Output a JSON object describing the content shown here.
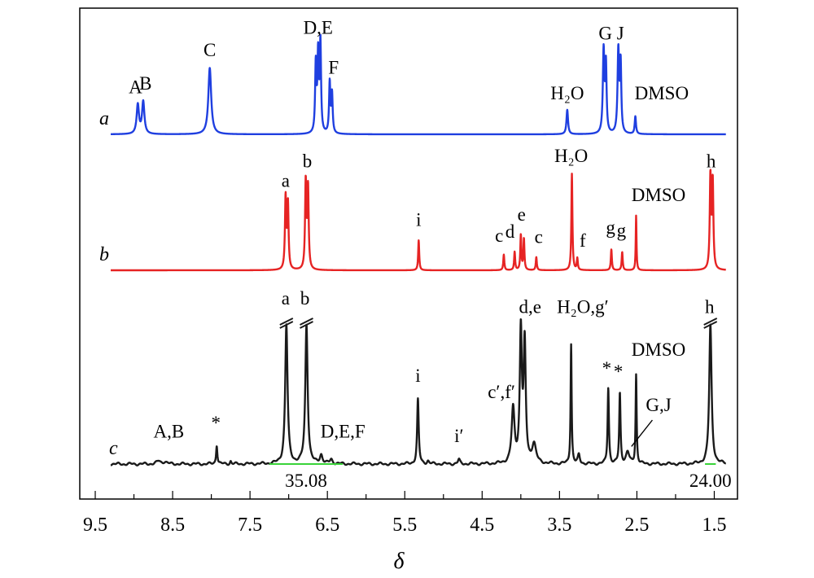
{
  "chart_data": {
    "type": "line",
    "xlabel": "δ",
    "xlim": [
      9.7,
      1.2
    ],
    "x_reversed": true,
    "x_ticks": [
      {
        "v": 9.5,
        "label": "9.5"
      },
      {
        "v": 8.5,
        "label": "8.5"
      },
      {
        "v": 7.5,
        "label": "7.5"
      },
      {
        "v": 6.5,
        "label": "6.5"
      },
      {
        "v": 5.5,
        "label": "5.5"
      },
      {
        "v": 4.5,
        "label": "4.5"
      },
      {
        "v": 3.5,
        "label": "3.5"
      },
      {
        "v": 2.5,
        "label": "2.5"
      },
      {
        "v": 1.5,
        "label": "1.5"
      }
    ],
    "grid": false,
    "legend": "none",
    "series": [
      {
        "id": "a",
        "label": "a",
        "color": "#1f3fe0",
        "peaks": [
          {
            "x": 8.95,
            "h": 0.3,
            "w": 0.018
          },
          {
            "x": 8.88,
            "h": 0.33,
            "w": 0.018
          },
          {
            "x": 8.02,
            "h": 0.68,
            "w": 0.022
          },
          {
            "x": 6.65,
            "h": 0.7,
            "w": 0.01
          },
          {
            "x": 6.62,
            "h": 0.78,
            "w": 0.01
          },
          {
            "x": 6.59,
            "h": 0.92,
            "w": 0.01
          },
          {
            "x": 6.47,
            "h": 0.52,
            "w": 0.01
          },
          {
            "x": 6.44,
            "h": 0.4,
            "w": 0.01
          },
          {
            "x": 3.4,
            "h": 0.25,
            "w": 0.012
          },
          {
            "x": 2.93,
            "h": 0.85,
            "w": 0.012
          },
          {
            "x": 2.9,
            "h": 0.68,
            "w": 0.01
          },
          {
            "x": 2.74,
            "h": 0.85,
            "w": 0.012
          },
          {
            "x": 2.71,
            "h": 0.7,
            "w": 0.01
          },
          {
            "x": 2.52,
            "h": 0.18,
            "w": 0.01
          }
        ],
        "annotations": [
          {
            "text": "A",
            "x": 8.98,
            "y": 0.42
          },
          {
            "text": "B",
            "x": 8.85,
            "y": 0.46
          },
          {
            "text": "C",
            "x": 8.02,
            "y": 0.8
          },
          {
            "text": "D,E",
            "x": 6.62,
            "y": 1.03
          },
          {
            "text": "F",
            "x": 6.42,
            "y": 0.62
          },
          {
            "text": "H₂O",
            "x": 3.4,
            "y": 0.36
          },
          {
            "text": "G J",
            "x": 2.83,
            "y": 0.97
          },
          {
            "text": "DMSO",
            "x": 2.18,
            "y": 0.36
          }
        ]
      },
      {
        "id": "b",
        "label": "b",
        "color": "#e62323",
        "peaks": [
          {
            "x": 7.04,
            "h": 0.55,
            "w": 0.01
          },
          {
            "x": 7.01,
            "h": 0.5,
            "w": 0.01
          },
          {
            "x": 6.78,
            "h": 0.67,
            "w": 0.01
          },
          {
            "x": 6.75,
            "h": 0.62,
            "w": 0.01
          },
          {
            "x": 5.32,
            "h": 0.23,
            "w": 0.008
          },
          {
            "x": 4.22,
            "h": 0.12,
            "w": 0.008
          },
          {
            "x": 4.08,
            "h": 0.14,
            "w": 0.008
          },
          {
            "x": 4.0,
            "h": 0.27,
            "w": 0.008
          },
          {
            "x": 3.96,
            "h": 0.24,
            "w": 0.008
          },
          {
            "x": 3.8,
            "h": 0.1,
            "w": 0.008
          },
          {
            "x": 3.34,
            "h": 0.74,
            "w": 0.008
          },
          {
            "x": 3.27,
            "h": 0.09,
            "w": 0.008
          },
          {
            "x": 2.83,
            "h": 0.16,
            "w": 0.008
          },
          {
            "x": 2.69,
            "h": 0.14,
            "w": 0.008
          },
          {
            "x": 2.51,
            "h": 0.42,
            "w": 0.006
          },
          {
            "x": 1.55,
            "h": 0.71,
            "w": 0.01
          },
          {
            "x": 1.52,
            "h": 0.67,
            "w": 0.01
          }
        ],
        "annotations": [
          {
            "text": "a",
            "x": 7.04,
            "y": 0.64
          },
          {
            "text": "b",
            "x": 6.76,
            "y": 0.79
          },
          {
            "text": "i",
            "x": 5.32,
            "y": 0.34
          },
          {
            "text": "c",
            "x": 4.28,
            "y": 0.22
          },
          {
            "text": "d",
            "x": 4.14,
            "y": 0.25
          },
          {
            "text": "e",
            "x": 3.99,
            "y": 0.38
          },
          {
            "text": "c",
            "x": 3.77,
            "y": 0.21
          },
          {
            "text": "H₂O",
            "x": 3.35,
            "y": 0.83
          },
          {
            "text": "f",
            "x": 3.2,
            "y": 0.18
          },
          {
            "text": "g",
            "x": 2.84,
            "y": 0.28
          },
          {
            "text": "g",
            "x": 2.7,
            "y": 0.26
          },
          {
            "text": "DMSO",
            "x": 2.22,
            "y": 0.53
          },
          {
            "text": "h",
            "x": 1.54,
            "y": 0.79
          }
        ]
      },
      {
        "id": "c",
        "label": "c",
        "color": "#1a1a1a",
        "peaks": [
          {
            "x": 8.68,
            "h": 0.02,
            "w": 0.03
          },
          {
            "x": 8.6,
            "h": 0.015,
            "w": 0.03
          },
          {
            "x": 7.93,
            "h": 0.13,
            "w": 0.01
          },
          {
            "x": 7.75,
            "h": 0.02,
            "w": 0.01
          },
          {
            "x": 7.03,
            "h": 0.95,
            "w": 0.018
          },
          {
            "x": 6.77,
            "h": 0.95,
            "w": 0.018
          },
          {
            "x": 6.58,
            "h": 0.06,
            "w": 0.02
          },
          {
            "x": 6.45,
            "h": 0.03,
            "w": 0.02
          },
          {
            "x": 5.33,
            "h": 0.44,
            "w": 0.012
          },
          {
            "x": 5.2,
            "h": 0.02,
            "w": 0.015
          },
          {
            "x": 4.8,
            "h": 0.03,
            "w": 0.015
          },
          {
            "x": 4.1,
            "h": 0.37,
            "w": 0.022
          },
          {
            "x": 4.0,
            "h": 0.9,
            "w": 0.016
          },
          {
            "x": 3.95,
            "h": 0.8,
            "w": 0.016
          },
          {
            "x": 3.83,
            "h": 0.13,
            "w": 0.03
          },
          {
            "x": 3.35,
            "h": 0.82,
            "w": 0.008
          },
          {
            "x": 3.25,
            "h": 0.06,
            "w": 0.015
          },
          {
            "x": 2.87,
            "h": 0.52,
            "w": 0.01
          },
          {
            "x": 2.72,
            "h": 0.48,
            "w": 0.01
          },
          {
            "x": 2.62,
            "h": 0.08,
            "w": 0.025
          },
          {
            "x": 2.51,
            "h": 0.61,
            "w": 0.008
          },
          {
            "x": 1.55,
            "h": 0.95,
            "w": 0.018
          }
        ],
        "annotations": [
          {
            "text": "A,B",
            "x": 8.55,
            "y": 0.18
          },
          {
            "text": "*",
            "x": 7.94,
            "y": 0.24
          },
          {
            "text": "a",
            "x": 7.04,
            "y": 1.09
          },
          {
            "text": "b",
            "x": 6.79,
            "y": 1.09
          },
          {
            "text": "D,E,F",
            "x": 6.3,
            "y": 0.18
          },
          {
            "text": "i",
            "x": 5.33,
            "y": 0.56
          },
          {
            "text": "i′",
            "x": 4.8,
            "y": 0.15
          },
          {
            "text": "c′,f′",
            "x": 4.25,
            "y": 0.45
          },
          {
            "text": "d,e",
            "x": 3.88,
            "y": 1.03
          },
          {
            "text": "H₂O,g′",
            "x": 3.2,
            "y": 1.03
          },
          {
            "text": "*",
            "x": 2.89,
            "y": 0.61
          },
          {
            "text": "*",
            "x": 2.74,
            "y": 0.59
          },
          {
            "text": "DMSO",
            "x": 2.22,
            "y": 0.74
          },
          {
            "text": "G,J",
            "x": 2.22,
            "y": 0.36
          },
          {
            "text": "h",
            "x": 1.56,
            "y": 1.03
          }
        ],
        "truncated_at": [
          7.03,
          6.77,
          1.55
        ],
        "leader_line": {
          "from": [
            2.3,
            0.3
          ],
          "to": [
            2.57,
            0.12
          ]
        },
        "integrals": [
          {
            "label": "35.08",
            "from": 7.25,
            "to": 6.3
          },
          {
            "label": "24.00",
            "from": 1.62,
            "to": 1.48
          }
        ]
      }
    ]
  }
}
